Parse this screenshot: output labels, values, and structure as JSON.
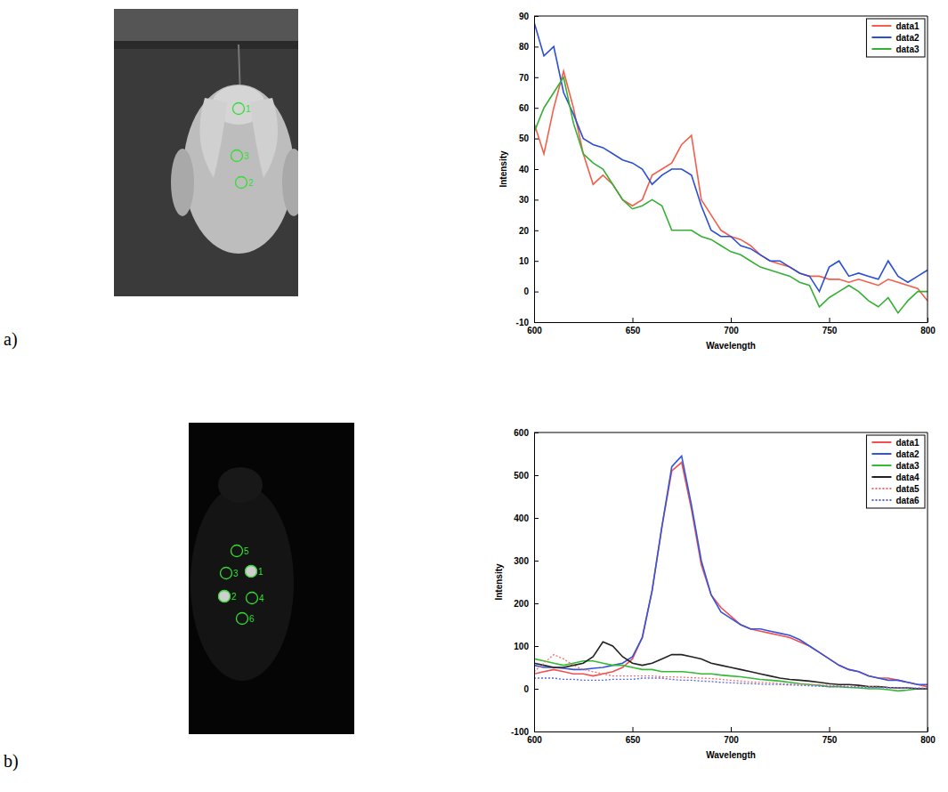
{
  "chart_data": [
    {
      "type": "line",
      "x_label": "Wavelength",
      "y_label": "Intensity",
      "x": [
        600,
        605,
        610,
        615,
        620,
        625,
        630,
        635,
        640,
        645,
        650,
        655,
        660,
        665,
        670,
        675,
        680,
        685,
        690,
        695,
        700,
        705,
        710,
        715,
        720,
        725,
        730,
        735,
        740,
        745,
        750,
        755,
        760,
        765,
        770,
        775,
        780,
        785,
        790,
        795,
        800
      ],
      "xlim": [
        600,
        800
      ],
      "xticks": [
        600,
        650,
        700,
        750,
        800
      ],
      "ylim": [
        -10,
        90
      ],
      "yticks": [
        -10,
        0,
        10,
        20,
        30,
        40,
        50,
        60,
        70,
        80,
        90
      ],
      "legend": "upper right",
      "series": [
        {
          "name": "data1",
          "color": "#f2604c",
          "line_style": "solid",
          "values": [
            55,
            45,
            60,
            72,
            60,
            45,
            35,
            38,
            35,
            30,
            28,
            30,
            38,
            40,
            42,
            48,
            51,
            30,
            25,
            20,
            18,
            17,
            15,
            12,
            10,
            9,
            8,
            6,
            5,
            5,
            4,
            4,
            3,
            4,
            3,
            2,
            4,
            3,
            2,
            1,
            -3
          ]
        },
        {
          "name": "data2",
          "color": "#2b4fd2",
          "line_style": "solid",
          "values": [
            88,
            77,
            80,
            65,
            58,
            50,
            48,
            47,
            45,
            43,
            42,
            40,
            35,
            38,
            40,
            40,
            38,
            28,
            20,
            18,
            18,
            15,
            14,
            12,
            10,
            10,
            8,
            6,
            5,
            0,
            8,
            10,
            5,
            6,
            5,
            4,
            10,
            5,
            3,
            5,
            7
          ]
        },
        {
          "name": "data3",
          "color": "#35b035",
          "line_style": "solid",
          "values": [
            52,
            60,
            65,
            70,
            55,
            45,
            42,
            40,
            35,
            30,
            27,
            28,
            30,
            28,
            20,
            20,
            20,
            18,
            17,
            15,
            13,
            12,
            10,
            8,
            7,
            6,
            5,
            3,
            2,
            -5,
            -2,
            0,
            2,
            0,
            -3,
            -5,
            -2,
            -7,
            -3,
            0,
            0
          ]
        }
      ]
    },
    {
      "type": "line",
      "x_label": "Wavelength",
      "y_label": "Intensity",
      "x": [
        600,
        605,
        610,
        615,
        620,
        625,
        630,
        635,
        640,
        645,
        650,
        655,
        660,
        665,
        670,
        675,
        680,
        685,
        690,
        695,
        700,
        705,
        710,
        715,
        720,
        725,
        730,
        735,
        740,
        745,
        750,
        755,
        760,
        765,
        770,
        775,
        780,
        785,
        790,
        795,
        800
      ],
      "xlim": [
        600,
        800
      ],
      "xticks": [
        600,
        650,
        700,
        750,
        800
      ],
      "ylim": [
        -100,
        600
      ],
      "yticks": [
        -100,
        0,
        100,
        200,
        300,
        400,
        500,
        600
      ],
      "legend": "upper right",
      "series": [
        {
          "name": "data1",
          "color": "#f05050",
          "line_style": "solid",
          "values": [
            35,
            40,
            45,
            40,
            35,
            35,
            30,
            35,
            40,
            50,
            70,
            120,
            230,
            380,
            510,
            530,
            420,
            290,
            220,
            190,
            170,
            150,
            140,
            135,
            130,
            125,
            120,
            110,
            100,
            85,
            70,
            55,
            45,
            40,
            30,
            25,
            25,
            20,
            15,
            10,
            5
          ]
        },
        {
          "name": "data2",
          "color": "#3355dd",
          "line_style": "solid",
          "values": [
            55,
            50,
            50,
            48,
            45,
            45,
            48,
            50,
            55,
            60,
            75,
            120,
            230,
            380,
            520,
            545,
            430,
            300,
            220,
            180,
            165,
            150,
            140,
            140,
            135,
            130,
            125,
            115,
            100,
            85,
            70,
            55,
            45,
            40,
            30,
            25,
            20,
            20,
            15,
            10,
            10
          ]
        },
        {
          "name": "data3",
          "color": "#33bb33",
          "line_style": "solid",
          "values": [
            70,
            65,
            60,
            55,
            60,
            65,
            65,
            60,
            55,
            55,
            50,
            45,
            45,
            40,
            40,
            40,
            38,
            35,
            35,
            32,
            30,
            28,
            25,
            22,
            20,
            18,
            15,
            12,
            10,
            8,
            5,
            5,
            3,
            2,
            0,
            0,
            -2,
            -5,
            -3,
            0,
            0
          ]
        },
        {
          "name": "data4",
          "color": "#222222",
          "line_style": "solid",
          "values": [
            60,
            55,
            50,
            50,
            55,
            60,
            75,
            110,
            100,
            75,
            60,
            55,
            60,
            70,
            80,
            80,
            75,
            70,
            60,
            55,
            50,
            45,
            40,
            35,
            30,
            25,
            22,
            20,
            18,
            15,
            12,
            10,
            10,
            8,
            5,
            5,
            3,
            2,
            2,
            0,
            0
          ]
        },
        {
          "name": "data5",
          "color": "#f07070",
          "line_style": "dotted",
          "values": [
            40,
            60,
            80,
            70,
            55,
            45,
            40,
            35,
            30,
            30,
            30,
            30,
            30,
            28,
            28,
            27,
            26,
            25,
            24,
            22,
            20,
            18,
            16,
            15,
            14,
            12,
            11,
            10,
            10,
            9,
            8,
            7,
            6,
            5,
            5,
            4,
            3,
            3,
            2,
            2,
            1
          ]
        },
        {
          "name": "data6",
          "color": "#5566ee",
          "line_style": "dotted",
          "values": [
            25,
            25,
            25,
            22,
            22,
            20,
            20,
            20,
            22,
            22,
            22,
            25,
            25,
            25,
            22,
            20,
            20,
            18,
            17,
            15,
            14,
            13,
            12,
            11,
            10,
            10,
            9,
            8,
            7,
            6,
            5,
            5,
            4,
            4,
            3,
            3,
            2,
            2,
            1,
            1,
            1
          ]
        }
      ]
    }
  ],
  "panels": [
    {
      "label": "a)",
      "markers": [
        "1",
        "3",
        "2"
      ]
    },
    {
      "label": "b)",
      "markers": [
        "5",
        "3",
        "1",
        "2",
        "4",
        "6"
      ]
    }
  ]
}
